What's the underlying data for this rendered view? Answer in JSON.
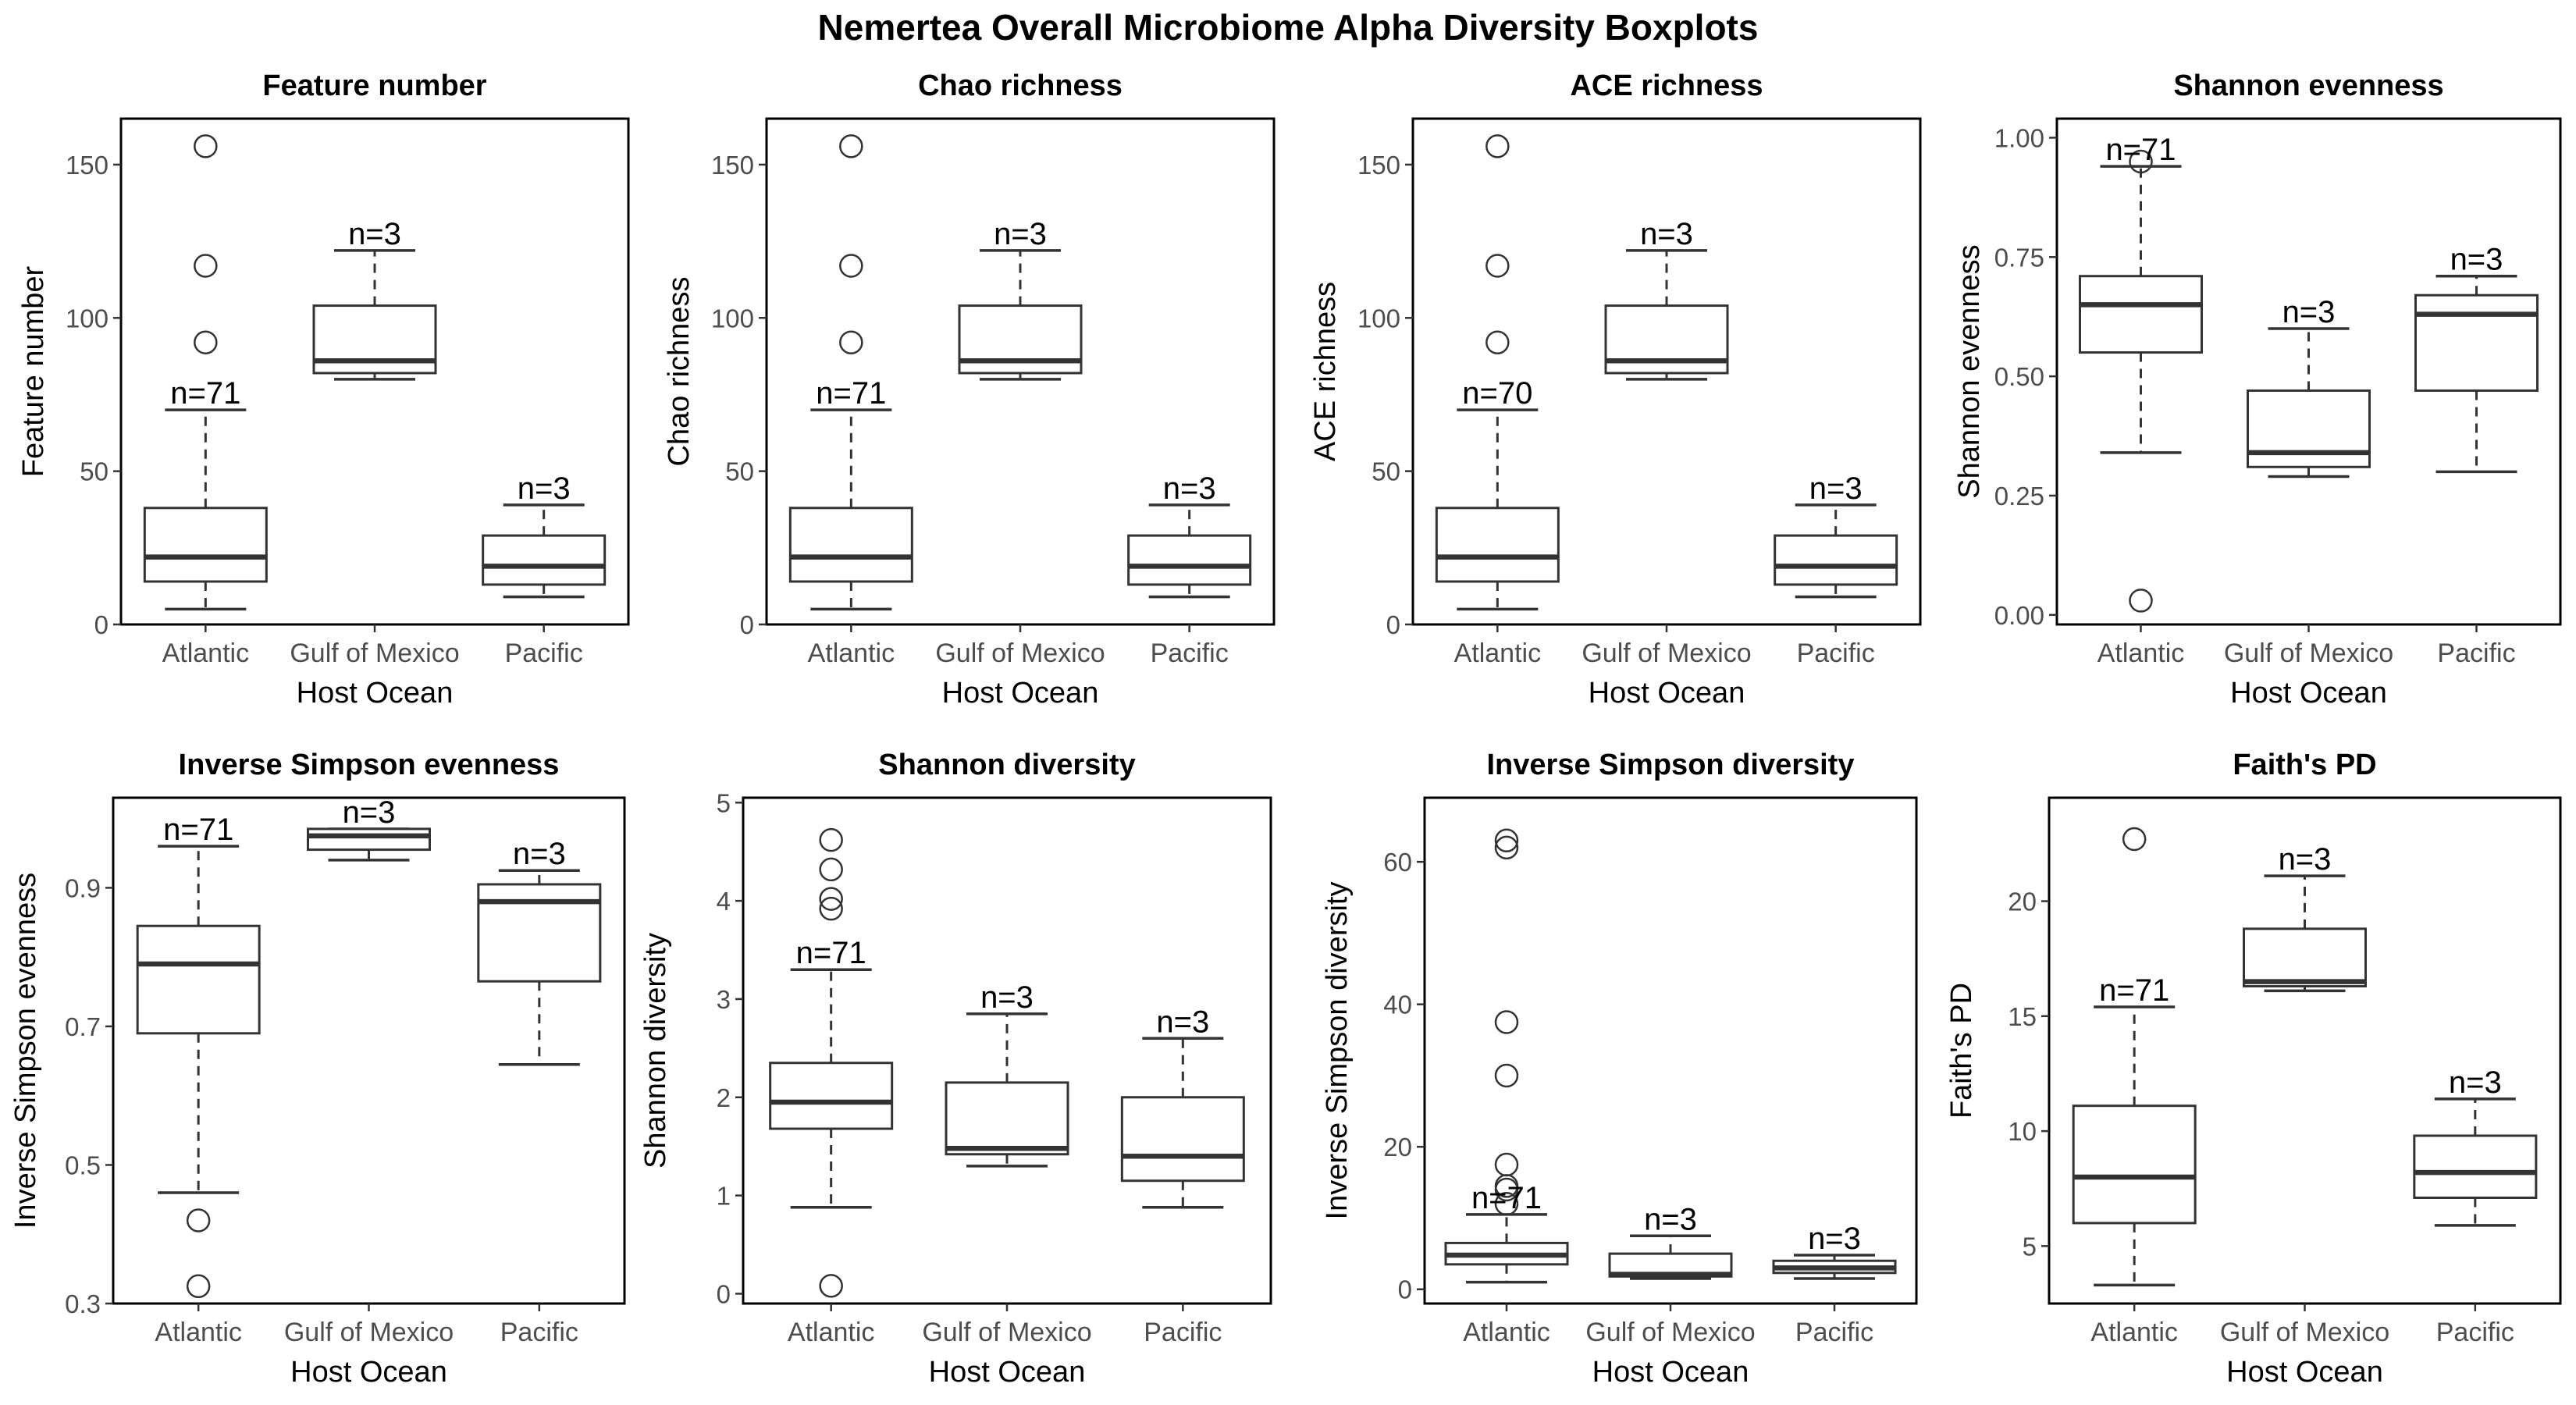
{
  "title": "Nemertea Overall Microbiome Alpha Diversity Boxplots",
  "chart_data": [
    {
      "type": "boxplot",
      "title": "Feature number",
      "xlabel": "Host Ocean",
      "ylabel": "Feature number",
      "categories": [
        "Atlantic",
        "Gulf of Mexico",
        "Pacific"
      ],
      "ylim": [
        0,
        165
      ],
      "yticks": [
        "0",
        "50",
        "100",
        "150"
      ],
      "boxes": [
        {
          "n": "n=71",
          "whisker_low": 5,
          "q1": 14,
          "median": 22,
          "q3": 38,
          "whisker_high": 70,
          "outliers": [
            92,
            117,
            156
          ]
        },
        {
          "n": "n=3",
          "whisker_low": 80,
          "q1": 82,
          "median": 86,
          "q3": 104,
          "whisker_high": 122,
          "outliers": []
        },
        {
          "n": "n=3",
          "whisker_low": 9,
          "q1": 13,
          "median": 19,
          "q3": 29,
          "whisker_high": 39,
          "outliers": []
        }
      ]
    },
    {
      "type": "boxplot",
      "title": "Chao richness",
      "xlabel": "Host Ocean",
      "ylabel": "Chao richness",
      "categories": [
        "Atlantic",
        "Gulf of Mexico",
        "Pacific"
      ],
      "ylim": [
        0,
        165
      ],
      "yticks": [
        "0",
        "50",
        "100",
        "150"
      ],
      "boxes": [
        {
          "n": "n=71",
          "whisker_low": 5,
          "q1": 14,
          "median": 22,
          "q3": 38,
          "whisker_high": 70,
          "outliers": [
            92,
            117,
            156
          ]
        },
        {
          "n": "n=3",
          "whisker_low": 80,
          "q1": 82,
          "median": 86,
          "q3": 104,
          "whisker_high": 122,
          "outliers": []
        },
        {
          "n": "n=3",
          "whisker_low": 9,
          "q1": 13,
          "median": 19,
          "q3": 29,
          "whisker_high": 39,
          "outliers": []
        }
      ]
    },
    {
      "type": "boxplot",
      "title": "ACE richness",
      "xlabel": "Host Ocean",
      "ylabel": "ACE richness",
      "categories": [
        "Atlantic",
        "Gulf of Mexico",
        "Pacific"
      ],
      "ylim": [
        0,
        165
      ],
      "yticks": [
        "0",
        "50",
        "100",
        "150"
      ],
      "boxes": [
        {
          "n": "n=70",
          "whisker_low": 5,
          "q1": 14,
          "median": 22,
          "q3": 38,
          "whisker_high": 70,
          "outliers": [
            92,
            117,
            156
          ]
        },
        {
          "n": "n=3",
          "whisker_low": 80,
          "q1": 82,
          "median": 86,
          "q3": 104,
          "whisker_high": 122,
          "outliers": []
        },
        {
          "n": "n=3",
          "whisker_low": 9,
          "q1": 13,
          "median": 19,
          "q3": 29,
          "whisker_high": 39,
          "outliers": []
        }
      ]
    },
    {
      "type": "boxplot",
      "title": "Shannon evenness",
      "xlabel": "Host Ocean",
      "ylabel": "Shannon evenness",
      "categories": [
        "Atlantic",
        "Gulf of Mexico",
        "Pacific"
      ],
      "ylim": [
        -0.02,
        1.04
      ],
      "yticks": [
        "0.00",
        "0.25",
        "0.50",
        "0.75",
        "1.00"
      ],
      "boxes": [
        {
          "n": "n=71",
          "whisker_low": 0.34,
          "q1": 0.55,
          "median": 0.65,
          "q3": 0.71,
          "whisker_high": 0.94,
          "outliers": [
            0.03,
            0.95
          ]
        },
        {
          "n": "n=3",
          "whisker_low": 0.29,
          "q1": 0.31,
          "median": 0.34,
          "q3": 0.47,
          "whisker_high": 0.6,
          "outliers": []
        },
        {
          "n": "n=3",
          "whisker_low": 0.3,
          "q1": 0.47,
          "median": 0.63,
          "q3": 0.67,
          "whisker_high": 0.71,
          "outliers": []
        }
      ]
    },
    {
      "type": "boxplot",
      "title": "Inverse Simpson evenness",
      "xlabel": "Host Ocean",
      "ylabel": "Inverse Simpson evenness",
      "categories": [
        "Atlantic",
        "Gulf of Mexico",
        "Pacific"
      ],
      "ylim": [
        0.3,
        1.03
      ],
      "yticks": [
        "0.3",
        "0.5",
        "0.7",
        "0.9"
      ],
      "boxes": [
        {
          "n": "n=71",
          "whisker_low": 0.46,
          "q1": 0.69,
          "median": 0.79,
          "q3": 0.845,
          "whisker_high": 0.96,
          "outliers": [
            0.42,
            0.325
          ]
        },
        {
          "n": "n=3",
          "whisker_low": 0.94,
          "q1": 0.955,
          "median": 0.975,
          "q3": 0.985,
          "whisker_high": 0.985,
          "outliers": []
        },
        {
          "n": "n=3",
          "whisker_low": 0.645,
          "q1": 0.765,
          "median": 0.88,
          "q3": 0.905,
          "whisker_high": 0.925,
          "outliers": []
        }
      ]
    },
    {
      "type": "boxplot",
      "title": "Shannon diversity",
      "xlabel": "Host Ocean",
      "ylabel": "Shannon diversity",
      "categories": [
        "Atlantic",
        "Gulf of Mexico",
        "Pacific"
      ],
      "ylim": [
        -0.1,
        5.05
      ],
      "yticks": [
        "0",
        "1",
        "2",
        "3",
        "4",
        "5"
      ],
      "boxes": [
        {
          "n": "n=71",
          "whisker_low": 0.88,
          "q1": 1.68,
          "median": 1.95,
          "q3": 2.35,
          "whisker_high": 3.3,
          "outliers": [
            0.08,
            3.92,
            4.02,
            4.32,
            4.62
          ]
        },
        {
          "n": "n=3",
          "whisker_low": 1.3,
          "q1": 1.42,
          "median": 1.48,
          "q3": 2.15,
          "whisker_high": 2.85,
          "outliers": []
        },
        {
          "n": "n=3",
          "whisker_low": 0.88,
          "q1": 1.15,
          "median": 1.4,
          "q3": 2.0,
          "whisker_high": 2.6,
          "outliers": []
        }
      ]
    },
    {
      "type": "boxplot",
      "title": "Inverse Simpson diversity",
      "xlabel": "Host Ocean",
      "ylabel": "Inverse Simpson diversity",
      "categories": [
        "Atlantic",
        "Gulf of Mexico",
        "Pacific"
      ],
      "ylim": [
        -2,
        69
      ],
      "yticks": [
        "0",
        "20",
        "40",
        "60"
      ],
      "boxes": [
        {
          "n": "n=71",
          "whisker_low": 1,
          "q1": 3.5,
          "median": 4.8,
          "q3": 6.5,
          "whisker_high": 10.5,
          "outliers": [
            12,
            14,
            14.5,
            17.5,
            30,
            37.5,
            62,
            63
          ]
        },
        {
          "n": "n=3",
          "whisker_low": 1.5,
          "q1": 1.8,
          "median": 2.1,
          "q3": 5,
          "whisker_high": 7.5,
          "outliers": []
        },
        {
          "n": "n=3",
          "whisker_low": 1.5,
          "q1": 2.3,
          "median": 3,
          "q3": 4,
          "whisker_high": 4.8,
          "outliers": []
        }
      ]
    },
    {
      "type": "boxplot",
      "title": "Faith's PD",
      "xlabel": "Host Ocean",
      "ylabel": "Faith's PD",
      "categories": [
        "Atlantic",
        "Gulf of Mexico",
        "Pacific"
      ],
      "ylim": [
        2.5,
        24.5
      ],
      "yticks": [
        "5",
        "10",
        "15",
        "20"
      ],
      "boxes": [
        {
          "n": "n=71",
          "whisker_low": 3.3,
          "q1": 6,
          "median": 8,
          "q3": 11.1,
          "whisker_high": 15.4,
          "outliers": [
            22.7
          ]
        },
        {
          "n": "n=3",
          "whisker_low": 16.1,
          "q1": 16.3,
          "median": 16.5,
          "q3": 18.8,
          "whisker_high": 21.1,
          "outliers": []
        },
        {
          "n": "n=3",
          "whisker_low": 5.9,
          "q1": 7.1,
          "median": 8.2,
          "q3": 9.8,
          "whisker_high": 11.4,
          "outliers": []
        }
      ]
    }
  ]
}
